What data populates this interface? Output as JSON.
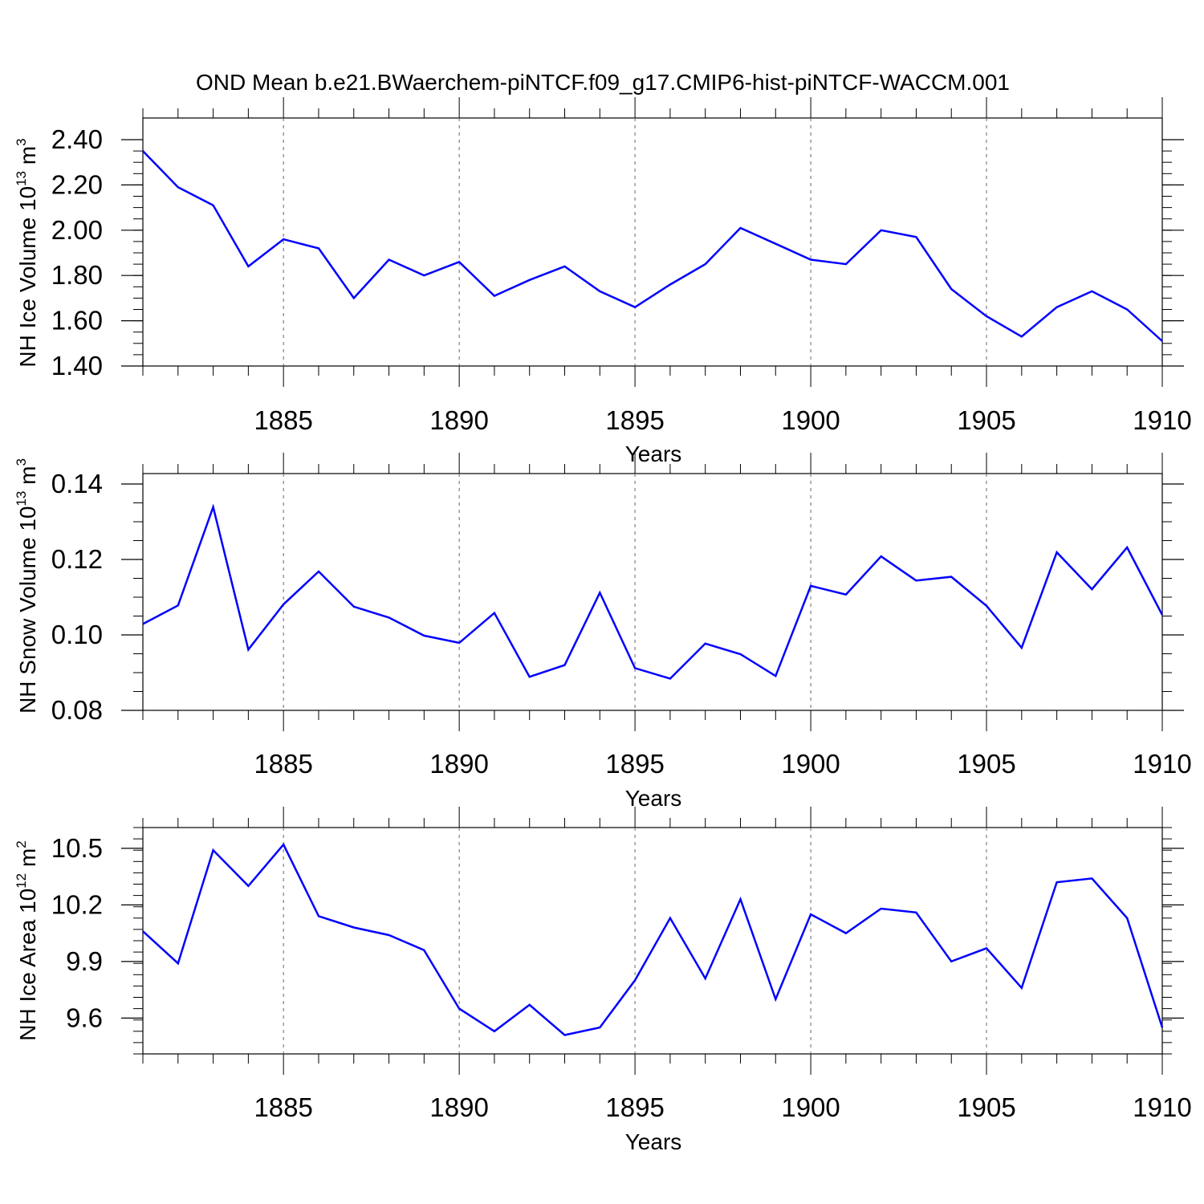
{
  "figure": {
    "title": "OND Mean b.e21.BWaerchem-piNTCF.f09_g17.CMIP6-hist-piNTCF-WACCM.001",
    "line_color": "#0000ff"
  },
  "chart_data": [
    {
      "type": "line",
      "name": "ice-volume",
      "ylabel": "NH Ice Volume 10",
      "ylabel_exp": "13",
      "ylabel_unit": " m",
      "ylabel_unit_exp": "3",
      "xlabel": "Years",
      "xlim": [
        1881,
        1910
      ],
      "ylim": [
        1.4,
        2.4
      ],
      "ymax_plot": 2.4,
      "yticks": [
        1.4,
        1.6,
        1.8,
        2.0,
        2.2,
        2.4
      ],
      "ytick_labels": [
        "1.40",
        "1.60",
        "1.80",
        "2.00",
        "2.20",
        "2.40"
      ],
      "yminor_step": 0.05,
      "xticks": [
        1885,
        1890,
        1895,
        1900,
        1905,
        1910
      ],
      "xtick_labels": [
        "1885",
        "1890",
        "1895",
        "1900",
        "1905",
        "1910"
      ],
      "x": [
        1881,
        1882,
        1883,
        1884,
        1885,
        1886,
        1887,
        1888,
        1889,
        1890,
        1891,
        1892,
        1893,
        1894,
        1895,
        1896,
        1897,
        1898,
        1899,
        1900,
        1901,
        1902,
        1903,
        1904,
        1905,
        1906,
        1907,
        1908,
        1909,
        1910
      ],
      "values": [
        2.35,
        2.19,
        2.11,
        1.84,
        1.96,
        1.92,
        1.7,
        1.87,
        1.8,
        1.86,
        1.71,
        1.78,
        1.84,
        1.73,
        1.66,
        1.76,
        1.85,
        2.01,
        1.94,
        1.87,
        1.85,
        2.0,
        1.97,
        1.74,
        1.62,
        1.53,
        1.66,
        1.73,
        1.65,
        1.51
      ]
    },
    {
      "type": "line",
      "name": "snow-volume",
      "ylabel": "NH Snow Volume 10",
      "ylabel_exp": "13",
      "ylabel_unit": " m",
      "ylabel_unit_exp": "3",
      "xlabel": "Years",
      "xlim": [
        1881,
        1910
      ],
      "ylim": [
        0.08,
        0.14
      ],
      "ymax_plot": 0.14,
      "yticks": [
        0.08,
        0.1,
        0.12,
        0.14
      ],
      "ytick_labels": [
        "0.08",
        "0.10",
        "0.12",
        "0.14"
      ],
      "yminor_step": 0.005,
      "xticks": [
        1885,
        1890,
        1895,
        1900,
        1905,
        1910
      ],
      "xtick_labels": [
        "1885",
        "1890",
        "1895",
        "1900",
        "1905",
        "1910"
      ],
      "x": [
        1881,
        1882,
        1883,
        1884,
        1885,
        1886,
        1887,
        1888,
        1889,
        1890,
        1891,
        1892,
        1893,
        1894,
        1895,
        1896,
        1897,
        1898,
        1899,
        1900,
        1901,
        1902,
        1903,
        1904,
        1905,
        1906,
        1907,
        1908,
        1909,
        1910
      ],
      "values": [
        0.1029,
        0.1078,
        0.1339,
        0.0961,
        0.1081,
        0.1168,
        0.1075,
        0.1046,
        0.0998,
        0.0979,
        0.1058,
        0.0889,
        0.092,
        0.1112,
        0.0912,
        0.0884,
        0.0977,
        0.0949,
        0.0891,
        0.113,
        0.1107,
        0.1208,
        0.1144,
        0.1154,
        0.1077,
        0.0966,
        0.1219,
        0.1121,
        0.1232,
        0.1053
      ]
    },
    {
      "type": "line",
      "name": "ice-area",
      "ylabel": "NH Ice Area 10",
      "ylabel_exp": "12",
      "ylabel_unit": " m",
      "ylabel_unit_exp": "2",
      "xlabel": "Years",
      "xlim": [
        1881,
        1910
      ],
      "ylim": [
        9.41,
        10.61
      ],
      "ymax_plot": 10.61,
      "yticks": [
        9.6,
        9.9,
        10.2,
        10.5
      ],
      "ytick_labels": [
        "9.6",
        "9.9",
        "10.2",
        "10.5"
      ],
      "yminor_step": 0.06,
      "xticks": [
        1885,
        1890,
        1895,
        1900,
        1905,
        1910
      ],
      "xtick_labels": [
        "1885",
        "1890",
        "1895",
        "1900",
        "1905",
        "1910"
      ],
      "x": [
        1881,
        1882,
        1883,
        1884,
        1885,
        1886,
        1887,
        1888,
        1889,
        1890,
        1891,
        1892,
        1893,
        1894,
        1895,
        1896,
        1897,
        1898,
        1899,
        1900,
        1901,
        1902,
        1903,
        1904,
        1905,
        1906,
        1907,
        1908,
        1909,
        1910
      ],
      "values": [
        10.06,
        9.89,
        10.49,
        10.3,
        10.52,
        10.14,
        10.08,
        10.04,
        9.96,
        9.65,
        9.53,
        9.67,
        9.51,
        9.55,
        9.8,
        10.13,
        9.81,
        10.23,
        9.7,
        10.15,
        10.05,
        10.18,
        10.16,
        9.9,
        9.97,
        9.76,
        10.32,
        10.34,
        10.13,
        9.55
      ]
    }
  ]
}
